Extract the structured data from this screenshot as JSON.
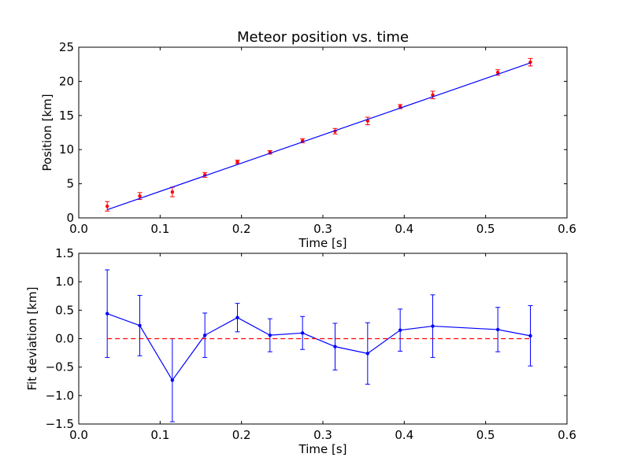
{
  "chart_data": [
    {
      "type": "scatter",
      "title": "Meteor position vs. time",
      "xlabel": "Time [s]",
      "ylabel": "Position [km]",
      "xlim": [
        0.0,
        0.6
      ],
      "ylim": [
        0,
        25
      ],
      "xticks": [
        "0.0",
        "0.1",
        "0.2",
        "0.3",
        "0.4",
        "0.5",
        "0.6"
      ],
      "yticks": [
        "0",
        "5",
        "10",
        "15",
        "20",
        "25"
      ],
      "grid": false,
      "series": [
        {
          "kind": "errorbar-points",
          "color": "#ff0000",
          "x": [
            0.035,
            0.075,
            0.115,
            0.155,
            0.195,
            0.235,
            0.275,
            0.315,
            0.355,
            0.395,
            0.435,
            0.515,
            0.555
          ],
          "y": [
            1.7,
            3.2,
            3.8,
            6.3,
            8.2,
            9.6,
            11.3,
            12.7,
            14.2,
            16.3,
            18.0,
            21.3,
            22.8
          ],
          "yerr": [
            0.7,
            0.5,
            0.7,
            0.35,
            0.25,
            0.25,
            0.3,
            0.4,
            0.55,
            0.3,
            0.55,
            0.4,
            0.55
          ]
        },
        {
          "kind": "fit-line",
          "color": "#0000ff",
          "x": [
            0.035,
            0.555
          ],
          "y": [
            1.2,
            22.7
          ]
        }
      ]
    },
    {
      "type": "line",
      "title": "",
      "xlabel": "Time [s]",
      "ylabel": "Fit deviation [km]",
      "xlim": [
        0.0,
        0.6
      ],
      "ylim": [
        -1.5,
        1.5
      ],
      "xticks": [
        "0.0",
        "0.1",
        "0.2",
        "0.3",
        "0.4",
        "0.5",
        "0.6"
      ],
      "yticks": [
        "−1.5",
        "−1.0",
        "−0.5",
        "0.0",
        "0.5",
        "1.0",
        "1.5"
      ],
      "grid": false,
      "series": [
        {
          "kind": "errorbar-line",
          "color": "#0000ff",
          "x": [
            0.035,
            0.075,
            0.115,
            0.155,
            0.195,
            0.235,
            0.275,
            0.315,
            0.355,
            0.395,
            0.435,
            0.515,
            0.555
          ],
          "y": [
            0.44,
            0.23,
            -0.73,
            0.06,
            0.37,
            0.06,
            0.1,
            -0.14,
            -0.26,
            0.15,
            0.22,
            0.16,
            0.05
          ],
          "yerr": [
            0.77,
            0.53,
            0.73,
            0.39,
            0.25,
            0.29,
            0.29,
            0.41,
            0.54,
            0.37,
            0.55,
            0.39,
            0.53
          ]
        },
        {
          "kind": "reference-line",
          "color": "#ff0000",
          "dashed": true,
          "x": [
            0.035,
            0.555
          ],
          "y": [
            0,
            0
          ]
        }
      ]
    }
  ]
}
